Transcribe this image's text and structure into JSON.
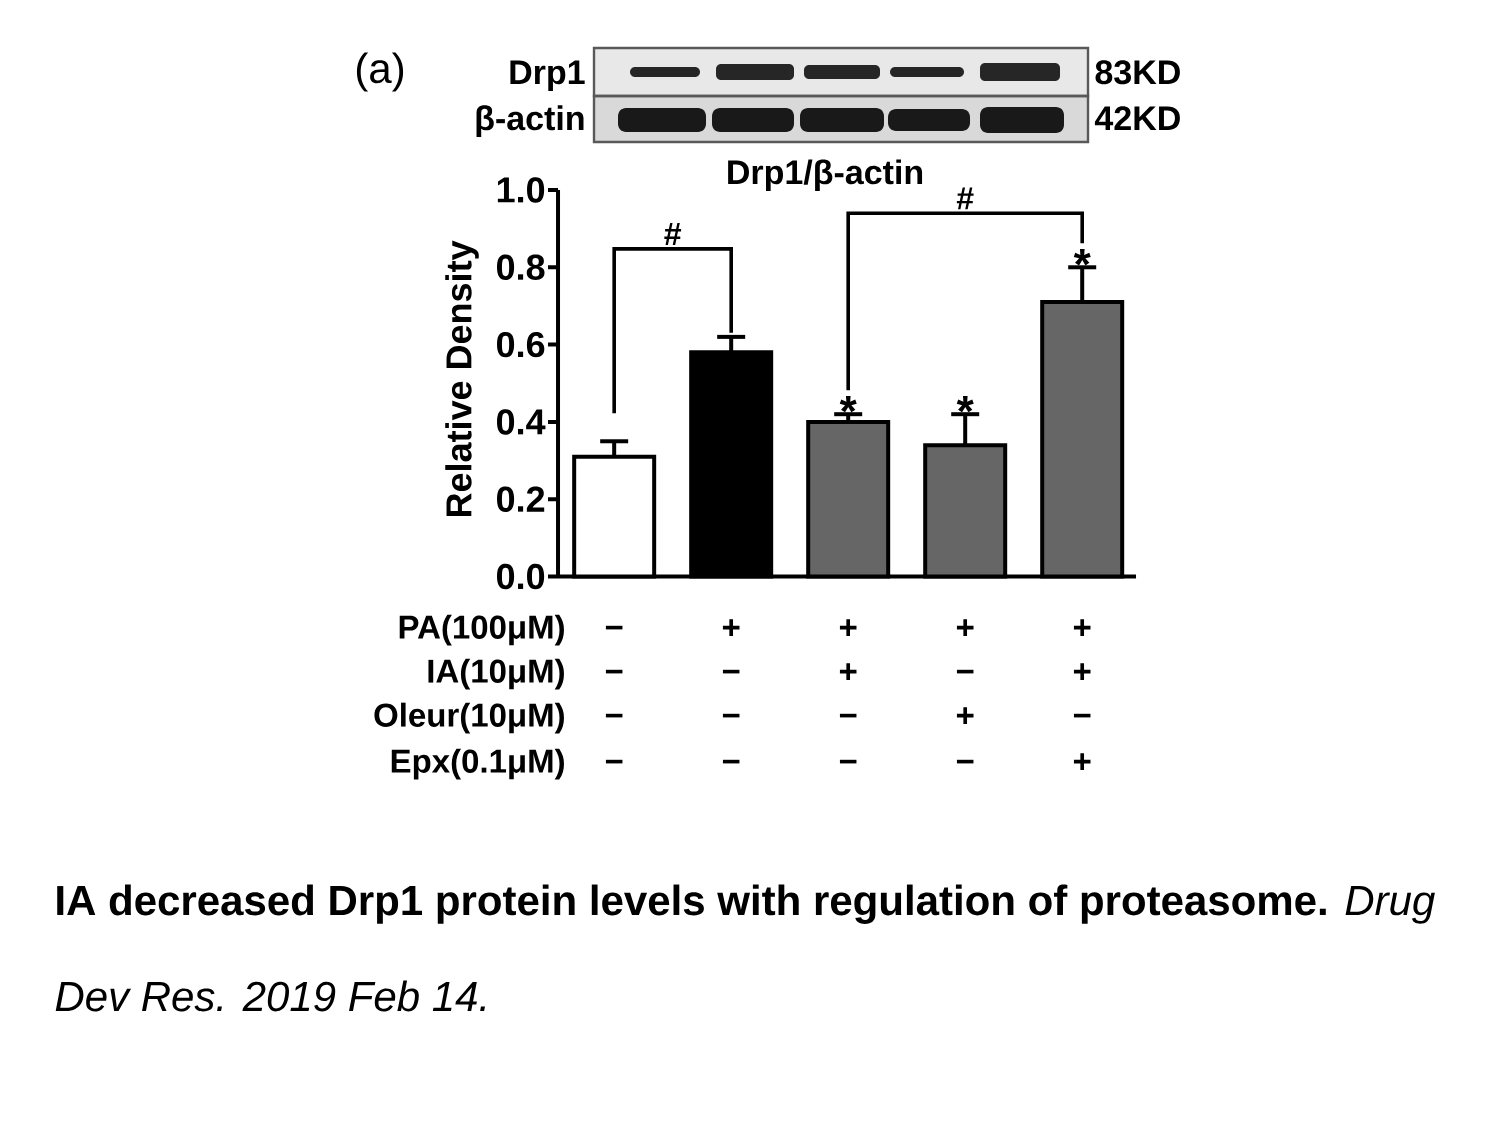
{
  "chart_data": {
    "type": "bar",
    "title": "Drp1/β-actin",
    "ylabel": "Relative Density",
    "categories": [
      null,
      null,
      null,
      null,
      null
    ],
    "values": [
      0.31,
      0.58,
      0.4,
      0.34,
      0.71
    ],
    "errors": [
      [
        0.31,
        0.35
      ],
      [
        0.58,
        0.62
      ],
      [
        0.4,
        0.42
      ],
      [
        0.34,
        0.42
      ],
      [
        0.71,
        0.8
      ]
    ],
    "colors": [
      "#ffffff",
      "#000000",
      "#666666",
      "#666666",
      "#666666"
    ],
    "ylim": [
      0,
      1
    ],
    "yticks": [
      {
        "value": 0,
        "label": "0.0"
      },
      0.2,
      0.4,
      0.6,
      0.8,
      {
        "value": 1,
        "label": "1.0"
      }
    ],
    "annotations": [
      "(a)",
      "Drp1",
      "β-actin",
      "83KD",
      "42KD",
      "#",
      "#",
      "*",
      "*",
      "*",
      "PA(100μM)",
      "IA(10μM)",
      "Oleur(10μM)",
      "Epx(0.1μM)",
      "−",
      "+",
      "+",
      "+",
      "+",
      "−",
      "−",
      "+",
      "−",
      "+",
      "−",
      "−",
      "−",
      "+",
      "−",
      "−",
      "−",
      "−",
      "−",
      "+",
      "IA decreased Drp1 protein levels with regulation of proteasome.",
      "Drug Dev Res. 2019 Feb 14."
    ]
  }
}
